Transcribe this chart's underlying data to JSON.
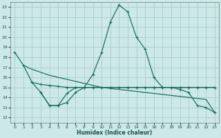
{
  "xlabel": "Humidex (Indice chaleur)",
  "bg_color": "#cce8e8",
  "grid_color": "#aacccc",
  "line_color": "#1a7060",
  "xlim": [
    -0.5,
    23.5
  ],
  "ylim": [
    11.5,
    23.5
  ],
  "yticks": [
    12,
    13,
    14,
    15,
    16,
    17,
    18,
    19,
    20,
    21,
    22,
    23
  ],
  "xticks": [
    0,
    1,
    2,
    3,
    4,
    5,
    6,
    7,
    8,
    9,
    10,
    11,
    12,
    13,
    14,
    15,
    16,
    17,
    18,
    19,
    20,
    21,
    22,
    23
  ],
  "line1_x": [
    0,
    1,
    2,
    3,
    4,
    5,
    6,
    7,
    8,
    9,
    10,
    11,
    12,
    13,
    14,
    15,
    16,
    17,
    18,
    19,
    20,
    21,
    22,
    23
  ],
  "line1_y": [
    18.5,
    17.2,
    15.5,
    14.5,
    13.2,
    13.2,
    14.4,
    15.0,
    15.0,
    16.3,
    18.5,
    21.5,
    23.2,
    22.5,
    20.0,
    18.8,
    16.0,
    15.0,
    15.0,
    14.8,
    14.5,
    13.2,
    13.0,
    12.5
  ],
  "line2_x": [
    1,
    2,
    3,
    4,
    5,
    6,
    7,
    8,
    9,
    10,
    11,
    12,
    13,
    14,
    15,
    16,
    17,
    18,
    19,
    20,
    21,
    22,
    23
  ],
  "line2_y": [
    17.2,
    16.8,
    16.5,
    16.2,
    16.0,
    15.8,
    15.6,
    15.4,
    15.2,
    15.0,
    14.9,
    14.8,
    14.7,
    14.6,
    14.5,
    14.4,
    14.3,
    14.2,
    14.1,
    14.0,
    13.9,
    13.8,
    12.5
  ],
  "line3_x": [
    2,
    3,
    4,
    5,
    6,
    7,
    8,
    9,
    10,
    11,
    12,
    13,
    14,
    15,
    16,
    17,
    18,
    19,
    20,
    21,
    22,
    23
  ],
  "line3_y": [
    15.5,
    15.3,
    15.2,
    15.1,
    15.0,
    15.0,
    15.0,
    15.0,
    15.0,
    15.0,
    15.0,
    15.0,
    15.0,
    15.0,
    15.0,
    15.0,
    15.0,
    15.0,
    15.0,
    15.0,
    15.0,
    15.0
  ],
  "line4_x": [
    3,
    4,
    5,
    6,
    7,
    8,
    9,
    10,
    11,
    12,
    13,
    14,
    15,
    16,
    17,
    18,
    19,
    20,
    21,
    22,
    23
  ],
  "line4_y": [
    14.5,
    13.2,
    13.2,
    13.5,
    14.5,
    15.0,
    15.0,
    15.0,
    15.0,
    15.0,
    15.0,
    15.0,
    15.0,
    15.0,
    15.0,
    15.0,
    15.0,
    15.0,
    15.0,
    15.0,
    15.0
  ]
}
